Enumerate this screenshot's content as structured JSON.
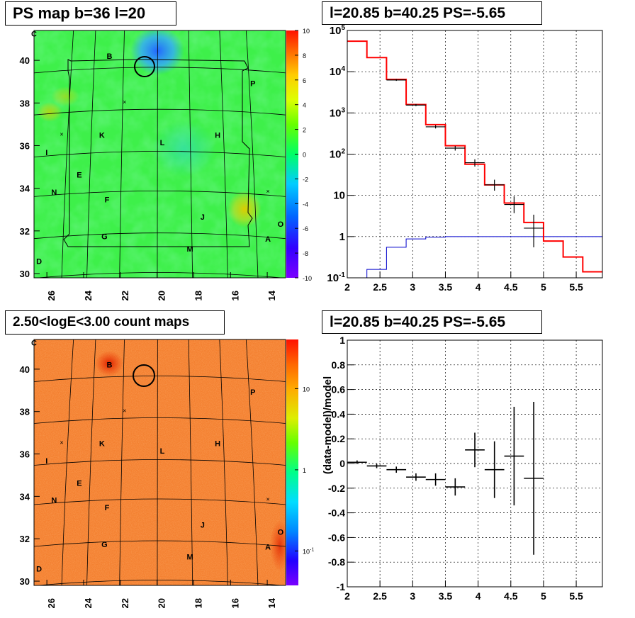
{
  "panels": {
    "map_top": {
      "title": "PS map b=36 l=20"
    },
    "spectrum": {
      "title": "l=20.85 b=40.25 PS=-5.65"
    },
    "map_bottom": {
      "title": "2.50<logE<3.00 count maps"
    },
    "residual": {
      "title": "l=20.85 b=40.25 PS=-5.65"
    }
  },
  "colors": {
    "data": "#000000",
    "model": "#ff0000",
    "source": "#0000cc",
    "grid": "#000000",
    "map_green": "#33ee44",
    "map_orange": "#f07a30"
  },
  "chart_data": [
    {
      "type": "heatmap",
      "title": "PS map b=36 l=20",
      "x_ticks": [
        "26",
        "24",
        "22",
        "20",
        "18",
        "16",
        "14"
      ],
      "y_ticks": [
        "30",
        "32",
        "34",
        "36",
        "38",
        "40"
      ],
      "xlim": [
        26.7,
        13.0
      ],
      "ylim": [
        29.8,
        41.4
      ],
      "colorbar_ticks": [
        "10",
        "8",
        "6",
        "4",
        "2",
        "0",
        "-2",
        "-4",
        "-6",
        "-8",
        "-10"
      ],
      "colorbar_range": [
        -10,
        10
      ],
      "region_labels": [
        "B",
        "P",
        "K",
        "L",
        "H",
        "I",
        "E",
        "N",
        "F",
        "J",
        "O",
        "G",
        "A",
        "M",
        "D",
        "C"
      ],
      "source_position": {
        "l": 20.85,
        "b": 40.25
      }
    },
    {
      "type": "line",
      "title": "l=20.85 b=40.25 PS=-5.65",
      "xlim": [
        2,
        5.9
      ],
      "ylim": [
        0.1,
        100000
      ],
      "yscale": "log",
      "grid": true,
      "x_ticks": [
        "2",
        "2.5",
        "3",
        "3.5",
        "4",
        "4.5",
        "5",
        "5.5"
      ],
      "y_ticks": [
        "10^-1",
        "1",
        "10",
        "10^2",
        "10^3",
        "10^4",
        "10^5"
      ],
      "bin_edges": [
        2.0,
        2.3,
        2.6,
        2.9,
        3.2,
        3.5,
        3.8,
        4.1,
        4.4,
        4.7,
        5.0,
        5.3,
        5.6,
        5.9
      ],
      "series": [
        {
          "kind": "model",
          "values": [
            55000,
            22000,
            6500,
            1600,
            520,
            160,
            57,
            18,
            6.5,
            2.2,
            0.78,
            0.32,
            0.14
          ]
        },
        {
          "kind": "source",
          "values": [
            0.1,
            0.16,
            0.55,
            0.88,
            0.97,
            1.0,
            1.0,
            1.0,
            1.0,
            1.0,
            1.0,
            1.0,
            1.0
          ]
        },
        {
          "kind": "data",
          "x": [
            2.75,
            3.05,
            3.35,
            3.65,
            3.95,
            4.25,
            4.55,
            4.85
          ],
          "y": [
            6300,
            1550,
            460,
            140,
            62,
            18,
            6.0,
            1.6
          ],
          "ylo": [
            6000,
            1460,
            420,
            122,
            50,
            13,
            3.7,
            0.55
          ],
          "yhi": [
            6600,
            1640,
            500,
            158,
            75,
            24,
            9.5,
            3.4
          ]
        }
      ]
    },
    {
      "type": "heatmap",
      "title": "2.50<logE<3.00 count maps",
      "x_ticks": [
        "26",
        "24",
        "22",
        "20",
        "18",
        "16",
        "14"
      ],
      "y_ticks": [
        "30",
        "32",
        "34",
        "36",
        "38",
        "40"
      ],
      "xlim": [
        26.7,
        13.0
      ],
      "ylim": [
        29.8,
        41.4
      ],
      "colorbar_ticks": [
        "10",
        "1",
        "10^-1"
      ],
      "colorbar_scale": "log",
      "region_labels": [
        "B",
        "P",
        "K",
        "L",
        "H",
        "I",
        "E",
        "N",
        "F",
        "J",
        "O",
        "G",
        "A",
        "M",
        "D",
        "C"
      ],
      "source_position": {
        "l": 20.85,
        "b": 40.25
      }
    },
    {
      "type": "scatter",
      "title": "l=20.85 b=40.25 PS=-5.65",
      "ylabel": "(data-model)/model",
      "xlim": [
        2,
        5.9
      ],
      "ylim": [
        -1,
        1
      ],
      "grid": true,
      "x_ticks": [
        "2",
        "2.5",
        "3",
        "3.5",
        "4",
        "4.5",
        "5",
        "5.5"
      ],
      "y_ticks": [
        "-1",
        "-0.8",
        "-0.6",
        "-0.4",
        "-0.2",
        "0",
        "0.2",
        "0.4",
        "0.6",
        "0.8",
        "1"
      ],
      "points": [
        {
          "x": 2.15,
          "y": 0.01,
          "xerr": 0.15,
          "yerr": 0.015
        },
        {
          "x": 2.45,
          "y": -0.02,
          "xerr": 0.15,
          "yerr": 0.018
        },
        {
          "x": 2.75,
          "y": -0.05,
          "xerr": 0.15,
          "yerr": 0.025
        },
        {
          "x": 3.05,
          "y": -0.11,
          "xerr": 0.15,
          "yerr": 0.03
        },
        {
          "x": 3.35,
          "y": -0.13,
          "xerr": 0.15,
          "yerr": 0.05
        },
        {
          "x": 3.65,
          "y": -0.19,
          "xerr": 0.15,
          "yerr": 0.07
        },
        {
          "x": 3.95,
          "y": 0.11,
          "xerr": 0.15,
          "yerr": 0.14
        },
        {
          "x": 4.25,
          "y": -0.05,
          "xerr": 0.15,
          "yerr": 0.23
        },
        {
          "x": 4.55,
          "y": 0.06,
          "xerr": 0.15,
          "yerr": 0.4
        },
        {
          "x": 4.85,
          "y": -0.12,
          "xerr": 0.15,
          "yerr": 0.62
        }
      ]
    }
  ]
}
